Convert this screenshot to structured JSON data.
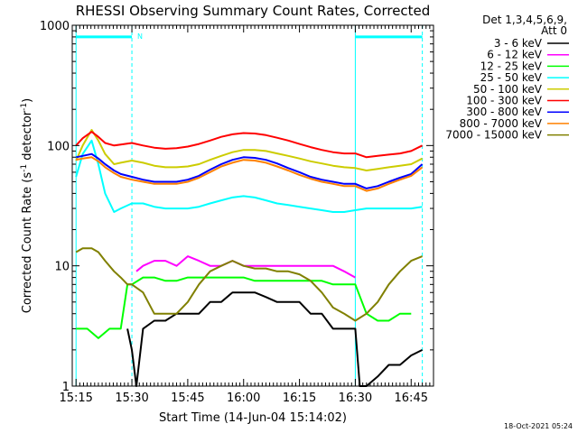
{
  "chart_data": {
    "type": "line",
    "title": "RHESSI Observing Summary Count Rates, Corrected",
    "xlabel": "Start Time (14-Jun-04 15:14:02)",
    "ylabel": "Corrected Count Rate (s",
    "ylabel_sup1": "-1",
    "ylabel_mid": " detector",
    "ylabel_sup2": "-1",
    "ylabel_end": ")",
    "y_scale": "log",
    "ylim": [
      1,
      1000
    ],
    "y_ticks": [
      1,
      10,
      100,
      1000
    ],
    "y_tick_labels": [
      "1",
      "10",
      "100",
      "1000"
    ],
    "x_range_minutes": [
      15.233,
      16.85
    ],
    "x_range": [
      "15:14",
      "16:51"
    ],
    "x_ticks": [
      15.25,
      15.5,
      15.75,
      16.0,
      16.25,
      16.5,
      16.75
    ],
    "x_tick_labels": [
      "15:15",
      "15:30",
      "15:45",
      "16:00",
      "16:15",
      "16:30",
      "16:45"
    ],
    "grid": false,
    "legend": {
      "placement": "right",
      "header": [
        "Det 1,3,4,5,6,9,",
        "Att 0"
      ]
    },
    "timestamp": "18-Oct-2021 05:24",
    "night_marker": "N",
    "night_intervals": [
      [
        15.25,
        15.5
      ],
      [
        16.5,
        16.8
      ]
    ],
    "series": [
      {
        "name": "3 - 6 keV",
        "color": "#000000",
        "x": [
          15.48,
          15.5,
          15.52,
          15.55,
          15.6,
          15.65,
          15.7,
          15.75,
          15.8,
          15.85,
          15.9,
          15.95,
          16.0,
          16.05,
          16.1,
          16.15,
          16.2,
          16.25,
          16.3,
          16.35,
          16.4,
          16.45,
          16.5,
          16.52,
          16.55,
          16.6,
          16.65,
          16.7,
          16.75,
          16.8
        ],
        "y": [
          3,
          2,
          1,
          3,
          3.5,
          3.5,
          4,
          4,
          4,
          5,
          5,
          6,
          6,
          6,
          5.5,
          5,
          5,
          5,
          4,
          4,
          3,
          3,
          3,
          1,
          1,
          1.2,
          1.5,
          1.5,
          1.8,
          2
        ]
      },
      {
        "name": "6 - 12 keV",
        "color": "#ff00ff",
        "x": [
          15.52,
          15.55,
          15.6,
          15.65,
          15.7,
          15.75,
          15.8,
          15.85,
          15.9,
          15.95,
          16.0,
          16.05,
          16.1,
          16.15,
          16.2,
          16.25,
          16.3,
          16.35,
          16.4,
          16.45,
          16.5
        ],
        "y": [
          9,
          10,
          11,
          11,
          10,
          12,
          11,
          10,
          10,
          11,
          10,
          10,
          10,
          10,
          10,
          10,
          10,
          10,
          10,
          9,
          8
        ]
      },
      {
        "name": "12 - 25 keV",
        "color": "#00ff00",
        "x": [
          15.25,
          15.3,
          15.35,
          15.4,
          15.45,
          15.48,
          15.5,
          15.55,
          15.6,
          15.65,
          15.7,
          15.75,
          15.8,
          15.85,
          15.9,
          15.95,
          16.0,
          16.05,
          16.1,
          16.15,
          16.2,
          16.25,
          16.3,
          16.35,
          16.4,
          16.45,
          16.5,
          16.55,
          16.6,
          16.65,
          16.7,
          16.75
        ],
        "y": [
          3,
          3,
          2.5,
          3,
          3,
          7,
          7,
          8,
          8,
          7.5,
          7.5,
          8,
          8,
          8,
          8,
          8,
          8,
          7.5,
          7.5,
          7.5,
          7.5,
          7.5,
          7.5,
          7.5,
          7,
          7,
          7,
          4,
          3.5,
          3.5,
          4,
          4
        ]
      },
      {
        "name": "25 - 50 keV",
        "color": "#00ffff",
        "x": [
          15.25,
          15.28,
          15.32,
          15.35,
          15.38,
          15.42,
          15.45,
          15.5,
          15.55,
          15.6,
          15.65,
          15.7,
          15.75,
          15.8,
          15.85,
          15.9,
          15.95,
          16.0,
          16.05,
          16.1,
          16.15,
          16.2,
          16.25,
          16.3,
          16.35,
          16.4,
          16.45,
          16.5,
          16.55,
          16.6,
          16.65,
          16.7,
          16.75,
          16.8
        ],
        "y": [
          55,
          85,
          110,
          70,
          40,
          28,
          30,
          33,
          33,
          31,
          30,
          30,
          30,
          31,
          33,
          35,
          37,
          38,
          37,
          35,
          33,
          32,
          31,
          30,
          29,
          28,
          28,
          29,
          30,
          30,
          30,
          30,
          30,
          31
        ]
      },
      {
        "name": "50 - 100 keV",
        "color": "#cccc00",
        "x": [
          15.25,
          15.28,
          15.32,
          15.35,
          15.38,
          15.42,
          15.45,
          15.5,
          15.55,
          15.6,
          15.65,
          15.7,
          15.75,
          15.8,
          15.85,
          15.9,
          15.95,
          16.0,
          16.05,
          16.1,
          16.15,
          16.2,
          16.25,
          16.3,
          16.35,
          16.4,
          16.45,
          16.5,
          16.55,
          16.6,
          16.65,
          16.7,
          16.75,
          16.8
        ],
        "y": [
          75,
          100,
          135,
          110,
          85,
          70,
          72,
          75,
          72,
          68,
          66,
          66,
          67,
          70,
          76,
          82,
          88,
          92,
          92,
          90,
          86,
          82,
          78,
          74,
          71,
          68,
          66,
          65,
          62,
          64,
          66,
          68,
          70,
          78
        ]
      },
      {
        "name": "100 - 300 keV",
        "color": "#ff0000",
        "x": [
          15.25,
          15.28,
          15.32,
          15.35,
          15.38,
          15.42,
          15.45,
          15.5,
          15.55,
          15.6,
          15.65,
          15.7,
          15.75,
          15.8,
          15.85,
          15.9,
          15.95,
          16.0,
          16.05,
          16.1,
          16.15,
          16.2,
          16.25,
          16.3,
          16.35,
          16.4,
          16.45,
          16.5,
          16.55,
          16.6,
          16.65,
          16.7,
          16.75,
          16.8
        ],
        "y": [
          100,
          115,
          130,
          118,
          105,
          100,
          102,
          105,
          100,
          96,
          94,
          95,
          98,
          103,
          110,
          118,
          124,
          127,
          126,
          122,
          116,
          110,
          103,
          97,
          92,
          88,
          86,
          86,
          80,
          82,
          84,
          86,
          90,
          100
        ]
      },
      {
        "name": "300 - 800 keV",
        "color": "#0000ff",
        "x": [
          15.25,
          15.28,
          15.32,
          15.35,
          15.38,
          15.42,
          15.45,
          15.5,
          15.55,
          15.6,
          15.65,
          15.7,
          15.75,
          15.8,
          15.85,
          15.9,
          15.95,
          16.0,
          16.05,
          16.1,
          16.15,
          16.2,
          16.25,
          16.3,
          16.35,
          16.4,
          16.45,
          16.5,
          16.55,
          16.6,
          16.65,
          16.7,
          16.75,
          16.8
        ],
        "y": [
          80,
          82,
          85,
          78,
          70,
          62,
          58,
          55,
          52,
          50,
          50,
          50,
          52,
          56,
          63,
          70,
          76,
          80,
          79,
          76,
          71,
          65,
          60,
          55,
          52,
          50,
          48,
          48,
          44,
          46,
          50,
          54,
          58,
          70
        ]
      },
      {
        "name": "800 - 7000 keV",
        "color": "#ff8000",
        "x": [
          15.25,
          15.28,
          15.32,
          15.35,
          15.38,
          15.42,
          15.45,
          15.5,
          15.55,
          15.6,
          15.65,
          15.7,
          15.75,
          15.8,
          15.85,
          15.9,
          15.95,
          16.0,
          16.05,
          16.1,
          16.15,
          16.2,
          16.25,
          16.3,
          16.35,
          16.4,
          16.45,
          16.5,
          16.55,
          16.6,
          16.65,
          16.7,
          16.75,
          16.8
        ],
        "y": [
          76,
          78,
          80,
          74,
          66,
          59,
          55,
          52,
          50,
          48,
          48,
          48,
          50,
          54,
          60,
          67,
          72,
          76,
          75,
          72,
          67,
          62,
          57,
          53,
          50,
          48,
          46,
          46,
          42,
          44,
          48,
          52,
          56,
          66
        ]
      },
      {
        "name": "7000 - 15000 keV",
        "color": "#808000",
        "x": [
          15.25,
          15.28,
          15.32,
          15.35,
          15.38,
          15.42,
          15.45,
          15.48,
          15.5,
          15.55,
          15.6,
          15.65,
          15.7,
          15.75,
          15.8,
          15.85,
          15.9,
          15.95,
          16.0,
          16.05,
          16.1,
          16.15,
          16.2,
          16.25,
          16.3,
          16.35,
          16.4,
          16.45,
          16.5,
          16.55,
          16.6,
          16.65,
          16.7,
          16.75,
          16.8
        ],
        "y": [
          13,
          14,
          14,
          13,
          11,
          9,
          8,
          7,
          7,
          6,
          4,
          4,
          4,
          5,
          7,
          9,
          10,
          11,
          10,
          9.5,
          9.5,
          9,
          9,
          8.5,
          7.5,
          6,
          4.5,
          4,
          3.5,
          4,
          5,
          7,
          9,
          11,
          12
        ]
      }
    ]
  }
}
